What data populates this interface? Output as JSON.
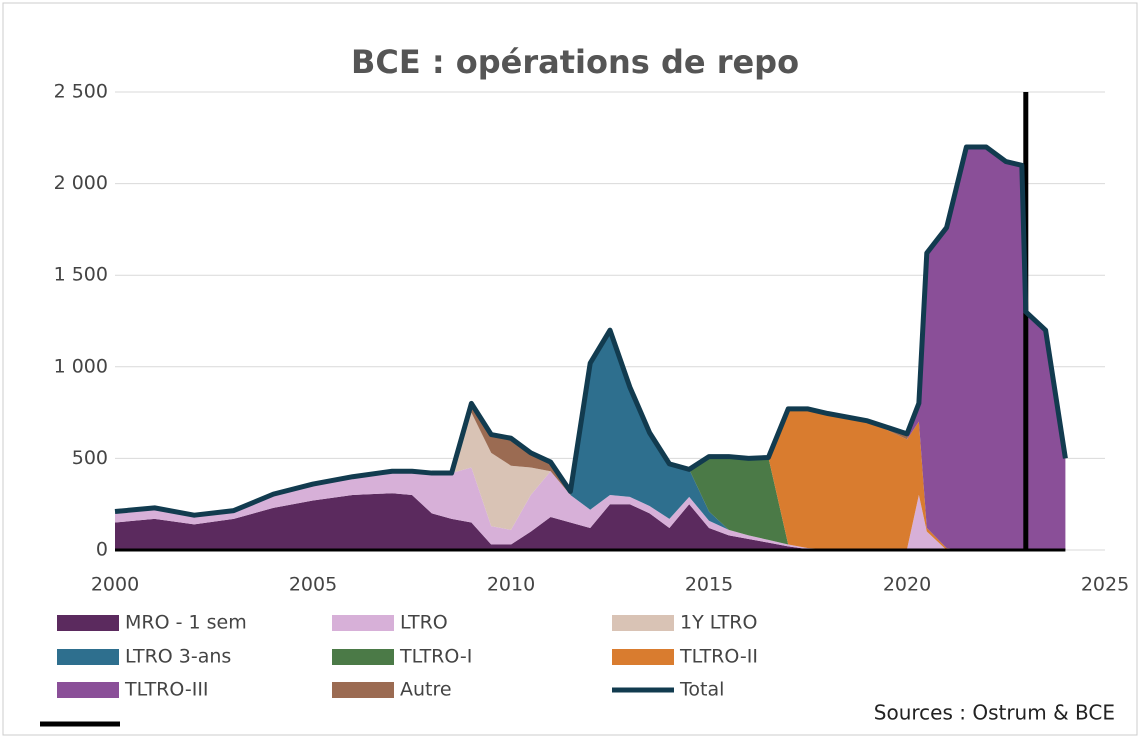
{
  "chart_data": {
    "type": "stacked_area",
    "title": "BCE : opérations de repo",
    "source": "Sources : Ostrum & BCE",
    "x": [
      2000,
      2001,
      2002,
      2003,
      2004,
      2005,
      2006,
      2007,
      2007.5,
      2008,
      2008.5,
      2009,
      2009.5,
      2010,
      2010.5,
      2011,
      2011.5,
      2012,
      2012.5,
      2013,
      2013.5,
      2014,
      2014.5,
      2015,
      2015.5,
      2016,
      2016.5,
      2017,
      2017.5,
      2018,
      2019,
      2020,
      2020.3,
      2020.5,
      2021,
      2021.5,
      2022,
      2022.5,
      2022.9,
      2023,
      2023.5,
      2024
    ],
    "series": [
      {
        "name": "MRO - 1 sem",
        "color": "#5b2a5e",
        "values": [
          150,
          170,
          140,
          170,
          230,
          270,
          300,
          310,
          300,
          200,
          170,
          150,
          30,
          30,
          100,
          180,
          150,
          120,
          250,
          250,
          200,
          120,
          250,
          120,
          80,
          60,
          40,
          20,
          5,
          3,
          3,
          2,
          1,
          1,
          0,
          0,
          0,
          0,
          0,
          0,
          0,
          0
        ]
      },
      {
        "name": "LTRO",
        "color": "#d7b0d8",
        "values": [
          60,
          60,
          50,
          45,
          75,
          90,
          100,
          120,
          130,
          220,
          250,
          300,
          100,
          80,
          200,
          250,
          150,
          100,
          50,
          40,
          40,
          50,
          40,
          40,
          30,
          20,
          15,
          10,
          5,
          2,
          2,
          2,
          300,
          100,
          0,
          0,
          0,
          0,
          0,
          0,
          0,
          0
        ]
      },
      {
        "name": "1Y LTRO",
        "color": "#d9c3b5",
        "values": [
          0,
          0,
          0,
          0,
          0,
          0,
          0,
          0,
          0,
          0,
          0,
          300,
          400,
          350,
          150,
          0,
          0,
          0,
          0,
          0,
          0,
          0,
          0,
          0,
          0,
          0,
          0,
          0,
          0,
          0,
          0,
          0,
          0,
          0,
          0,
          0,
          0,
          0,
          0,
          0,
          0,
          0
        ]
      },
      {
        "name": "LTRO 3-ans",
        "color": "#2e6f8e",
        "values": [
          0,
          0,
          0,
          0,
          0,
          0,
          0,
          0,
          0,
          0,
          0,
          0,
          0,
          0,
          0,
          0,
          0,
          800,
          900,
          600,
          400,
          300,
          150,
          50,
          0,
          0,
          0,
          0,
          0,
          0,
          0,
          0,
          0,
          0,
          0,
          0,
          0,
          0,
          0,
          0,
          0,
          0
        ]
      },
      {
        "name": "TLTRO-I",
        "color": "#4b7a47",
        "values": [
          0,
          0,
          0,
          0,
          0,
          0,
          0,
          0,
          0,
          0,
          0,
          0,
          0,
          0,
          0,
          0,
          0,
          0,
          0,
          0,
          0,
          0,
          0,
          300,
          400,
          420,
          450,
          0,
          0,
          0,
          0,
          0,
          0,
          0,
          0,
          0,
          0,
          0,
          0,
          0,
          0,
          0
        ]
      },
      {
        "name": "TLTRO-II",
        "color": "#d97c2f",
        "values": [
          0,
          0,
          0,
          0,
          0,
          0,
          0,
          0,
          0,
          0,
          0,
          0,
          0,
          0,
          0,
          0,
          0,
          0,
          0,
          0,
          0,
          0,
          0,
          0,
          0,
          0,
          0,
          740,
          760,
          740,
          700,
          600,
          400,
          20,
          10,
          0,
          0,
          0,
          0,
          0,
          0,
          0
        ]
      },
      {
        "name": "TLTRO-III",
        "color": "#8a4f98",
        "values": [
          0,
          0,
          0,
          0,
          0,
          0,
          0,
          0,
          0,
          0,
          0,
          0,
          0,
          0,
          0,
          0,
          0,
          0,
          0,
          0,
          0,
          0,
          0,
          0,
          0,
          0,
          0,
          0,
          0,
          0,
          0,
          0,
          100,
          1500,
          1750,
          2200,
          2200,
          2120,
          2100,
          1300,
          1200,
          500
        ]
      },
      {
        "name": "Autre",
        "color": "#9b6b52",
        "values": [
          0,
          0,
          0,
          0,
          0,
          0,
          0,
          0,
          0,
          0,
          0,
          50,
          100,
          150,
          80,
          50,
          20,
          0,
          0,
          0,
          0,
          0,
          0,
          0,
          0,
          0,
          0,
          0,
          0,
          0,
          0,
          30,
          0,
          0,
          0,
          0,
          0,
          0,
          0,
          0,
          0,
          0
        ]
      },
      {
        "name": "Total",
        "color": "#123b4f",
        "line": true,
        "values": [
          210,
          230,
          190,
          215,
          305,
          360,
          400,
          430,
          430,
          420,
          420,
          800,
          630,
          610,
          530,
          480,
          320,
          1020,
          1200,
          890,
          640,
          470,
          440,
          510,
          510,
          500,
          505,
          770,
          770,
          745,
          705,
          634,
          801,
          1621,
          1760,
          2200,
          2200,
          2120,
          2100,
          1300,
          1200,
          500
        ]
      }
    ],
    "vline": {
      "x": 2023,
      "color": "#000000"
    },
    "xlim": [
      2000,
      2025
    ],
    "xticks": [
      2000,
      2005,
      2010,
      2015,
      2020,
      2025
    ],
    "ylim": [
      0,
      2500
    ],
    "yticks": [
      0,
      500,
      {
        "value": 1000,
        "label": "1 000"
      },
      {
        "value": 1500,
        "label": "1 500"
      },
      {
        "value": 2000,
        "label": "2 000"
      },
      {
        "value": 2500,
        "label": "2 500"
      }
    ],
    "grid": true
  }
}
